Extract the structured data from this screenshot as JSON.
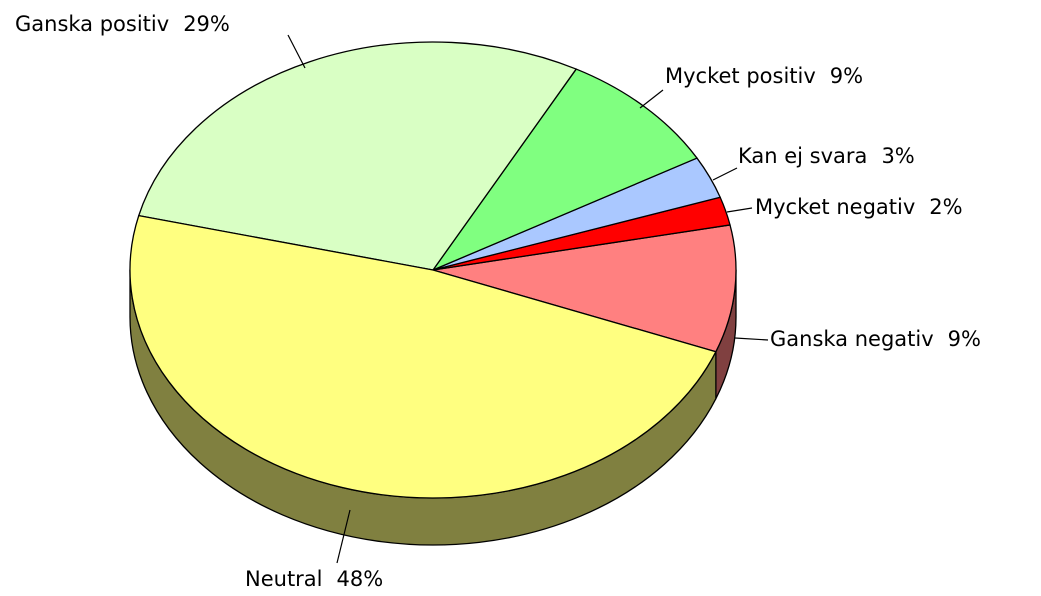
{
  "chart_data": {
    "type": "pie",
    "style": "3d",
    "categories": [
      "Ganska negativ",
      "Mycket negativ",
      "Kan ej svara",
      "Mycket positiv",
      "Ganska positiv",
      "Neutral"
    ],
    "values": [
      9,
      2,
      3,
      9,
      29,
      48
    ],
    "value_labels": [
      "9%",
      "2%",
      "3%",
      "9%",
      "29%",
      "48%"
    ],
    "colors": [
      "#ff8080",
      "#ff0000",
      "#aac8ff",
      "#80ff80",
      "#d9ffc4",
      "#ffff80"
    ]
  }
}
